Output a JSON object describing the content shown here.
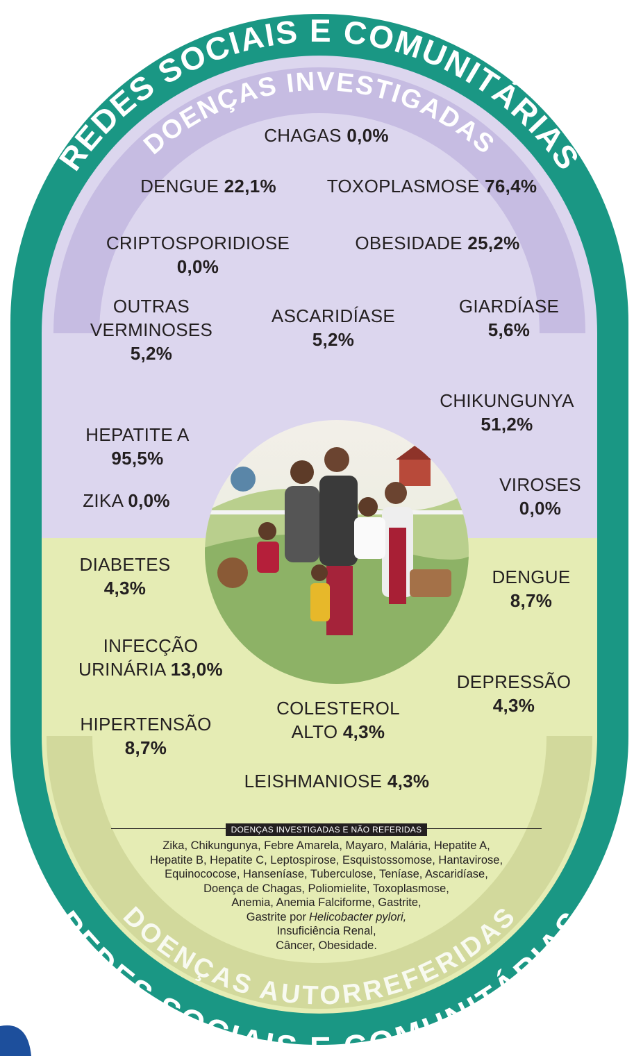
{
  "banner_top": "REDES SOCIAIS E COMUNITÁRIAS",
  "section_top": {
    "title": "DOENÇAS INVESTIGADAS",
    "items": [
      {
        "label": [
          "CHAGAS"
        ],
        "value": "0,0%"
      },
      {
        "label": [
          "DENGUE"
        ],
        "value": "22,1%"
      },
      {
        "label": [
          "TOXOPLASMOSE"
        ],
        "value": "76,4%"
      },
      {
        "label": [
          "CRIPTOSPORIDIOSE"
        ],
        "value": "0,0%"
      },
      {
        "label": [
          "OBESIDADE"
        ],
        "value": "25,2%"
      },
      {
        "label": [
          "OUTRAS",
          "VERMINOSES"
        ],
        "value": "5,2%"
      },
      {
        "label": [
          "ASCARIDÍASE"
        ],
        "value": "5,2%"
      },
      {
        "label": [
          "GIARDÍASE"
        ],
        "value": "5,6%"
      },
      {
        "label": [
          "CHIKUNGUNYA"
        ],
        "value": "51,2%"
      },
      {
        "label": [
          "HEPATITE A"
        ],
        "value": "95,5%"
      },
      {
        "label": [
          "ZIKA"
        ],
        "value": "0,0%"
      },
      {
        "label": [
          "VIROSES"
        ],
        "value": "0,0%"
      }
    ]
  },
  "section_bottom": {
    "title": "DOENÇAS AUTORREFERIDAS",
    "items": [
      {
        "label": [
          "DIABETES"
        ],
        "value": "4,3%"
      },
      {
        "label": [
          "DENGUE"
        ],
        "value": "8,7%"
      },
      {
        "label": [
          "INFECÇÃO",
          "URINÁRIA"
        ],
        "value": "13,0%"
      },
      {
        "label": [
          "DEPRESSÃO"
        ],
        "value": "4,3%"
      },
      {
        "label": [
          "HIPERTENSÃO"
        ],
        "value": "8,7%"
      },
      {
        "label": [
          "COLESTEROL",
          "ALTO"
        ],
        "value": "4,3%"
      },
      {
        "label": [
          "LEISHMANIOSE"
        ],
        "value": "4,3%"
      }
    ]
  },
  "notes": {
    "title": "DOENÇAS INVESTIGADAS E NÃO REFERIDAS",
    "lines": [
      "Zika, Chikungunya, Febre Amarela, Mayaro, Malária, Hepatite A,",
      "Hepatite B, Hepatite C, Leptospirose, Esquistossomose, Hantavirose,",
      "Equinococose, Hanseníase, Tuberculose, Teníase, Ascaridíase,",
      "Doença de Chagas, Poliomielite, Toxoplasmose,",
      "Anemia, Anemia Falciforme, Gastrite,",
      [
        "Gastrite por",
        "Helicobacter pylori,"
      ],
      "Insuficiência Renal,",
      "Câncer, Obesidade."
    ]
  },
  "banner_bottom": "REDES SOCIAIS E COMUNITÁRIAS"
}
